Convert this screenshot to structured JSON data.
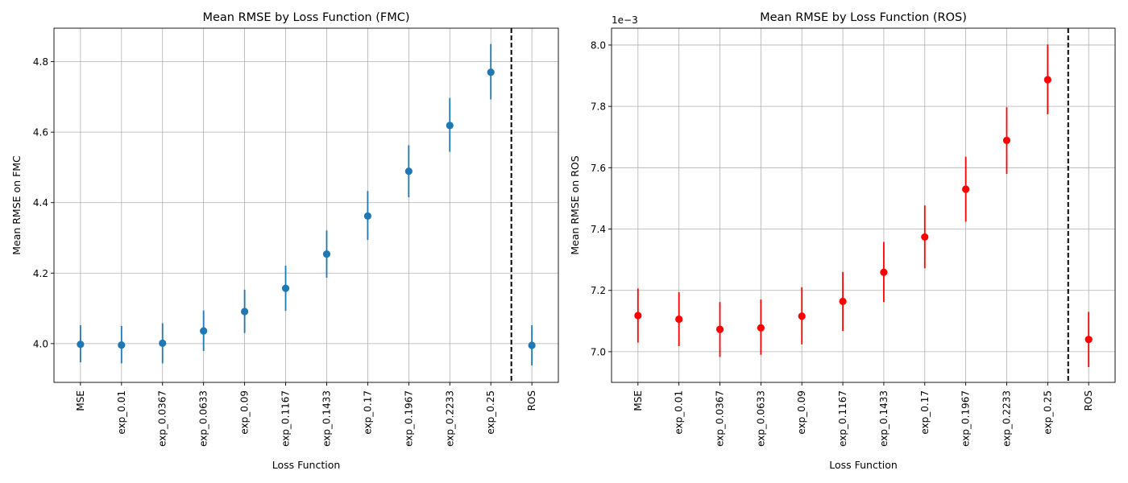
{
  "chart_data": [
    {
      "type": "errorbar",
      "title": "Mean RMSE by Loss Function (FMC)",
      "xlabel": "Loss Function",
      "ylabel": "Mean RMSE on FMC",
      "categories": [
        "MSE",
        "exp_0.01",
        "exp_0.0367",
        "exp_0.0633",
        "exp_0.09",
        "exp_0.1167",
        "exp_0.1433",
        "exp_0.17",
        "exp_0.1967",
        "exp_0.2233",
        "exp_0.25",
        "ROS"
      ],
      "values": [
        3.998,
        3.996,
        4.001,
        4.036,
        4.091,
        4.157,
        4.254,
        4.362,
        4.489,
        4.619,
        4.77,
        3.995
      ],
      "err_low": [
        3.947,
        3.944,
        3.944,
        3.979,
        4.03,
        4.093,
        4.187,
        4.294,
        4.415,
        4.544,
        4.693,
        3.938
      ],
      "err_high": [
        4.052,
        4.05,
        4.058,
        4.094,
        4.153,
        4.221,
        4.321,
        4.433,
        4.563,
        4.697,
        4.85,
        4.052
      ],
      "yticks": [
        4.0,
        4.2,
        4.4,
        4.6,
        4.8
      ],
      "ytick_labels": [
        "4.0",
        "4.2",
        "4.4",
        "4.6",
        "4.8"
      ],
      "ylim": [
        3.89,
        4.895
      ],
      "separator_after_index": 10,
      "color": "#1f77b4",
      "offset_label": "",
      "grid": true
    },
    {
      "type": "errorbar",
      "title": "Mean RMSE by Loss Function (ROS)",
      "xlabel": "Loss Function",
      "ylabel": "Mean RMSE on ROS",
      "categories": [
        "MSE",
        "exp_0.01",
        "exp_0.0367",
        "exp_0.0633",
        "exp_0.09",
        "exp_0.1167",
        "exp_0.1433",
        "exp_0.17",
        "exp_0.1967",
        "exp_0.2233",
        "exp_0.25",
        "ROS"
      ],
      "values": [
        7.118,
        7.106,
        7.073,
        7.078,
        7.116,
        7.164,
        7.259,
        7.374,
        7.53,
        7.689,
        7.887,
        7.04
      ],
      "err_low": [
        7.03,
        7.018,
        6.983,
        6.99,
        7.024,
        7.068,
        7.162,
        7.272,
        7.424,
        7.58,
        7.774,
        6.95
      ],
      "err_high": [
        7.206,
        7.194,
        7.162,
        7.17,
        7.21,
        7.26,
        7.358,
        7.477,
        7.636,
        7.797,
        8.002,
        7.13
      ],
      "yticks": [
        7.0,
        7.2,
        7.4,
        7.6,
        7.8,
        8.0
      ],
      "ytick_labels": [
        "7.0",
        "7.2",
        "7.4",
        "7.6",
        "7.8",
        "8.0"
      ],
      "ylim": [
        6.9,
        8.055
      ],
      "separator_after_index": 10,
      "color": "#ff0000",
      "offset_label": "1e−3",
      "grid": true
    }
  ]
}
